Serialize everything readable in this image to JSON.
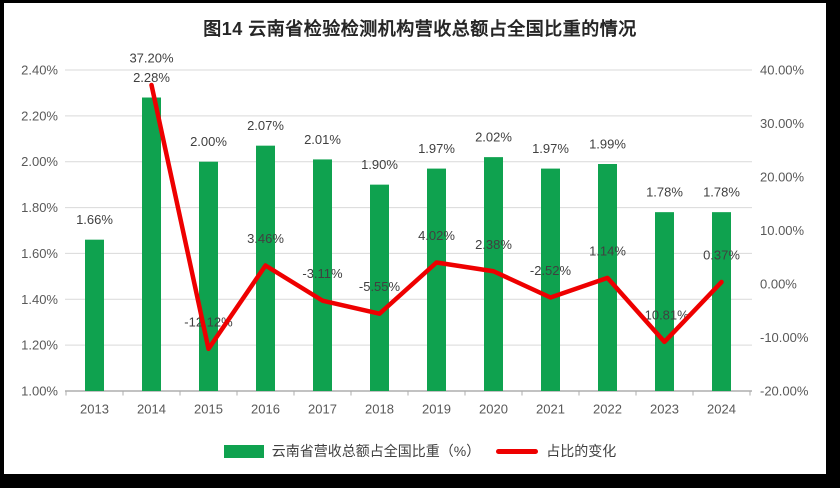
{
  "frame": {
    "border_color": "#000000",
    "background": "#ffffff"
  },
  "chart_data": {
    "type": "combo-bar-line",
    "title": "图14 云南省检验检测机构营收总额占全国比重的情况",
    "categories": [
      "2013",
      "2014",
      "2015",
      "2016",
      "2017",
      "2018",
      "2019",
      "2020",
      "2021",
      "2022",
      "2023",
      "2024"
    ],
    "series": [
      {
        "name": "云南省营收总额占全国比重（%）",
        "type": "bar",
        "axis": "left",
        "color": "#0FA24F",
        "values": [
          1.66,
          2.28,
          2.0,
          2.07,
          2.01,
          1.9,
          1.97,
          2.02,
          1.97,
          1.99,
          1.78,
          1.78
        ],
        "labels": [
          "1.66%",
          "2.28%",
          "2.00%",
          "2.07%",
          "2.01%",
          "1.90%",
          "1.97%",
          "2.02%",
          "1.97%",
          "1.99%",
          "1.78%",
          "1.78%"
        ]
      },
      {
        "name": "占比的变化",
        "type": "line",
        "axis": "right",
        "color": "#EE0000",
        "values": [
          null,
          37.2,
          -12.12,
          3.46,
          -3.11,
          -5.55,
          4.02,
          2.38,
          -2.52,
          1.14,
          -10.81,
          0.37
        ],
        "labels": [
          null,
          "37.20%",
          "-12.12%",
          "3.46%",
          "-3.11%",
          "-5.55%",
          "4.02%",
          "2.38%",
          "-2.52%",
          "1.14%",
          "-10.81%",
          "0.37%"
        ]
      }
    ],
    "left_axis": {
      "min": 1.0,
      "max": 2.4,
      "tick_labels": [
        "2.40%",
        "2.20%",
        "2.00%",
        "1.80%",
        "1.60%",
        "1.40%",
        "1.20%",
        "1.00%"
      ]
    },
    "right_axis": {
      "min": -20,
      "max": 40,
      "tick_labels": [
        "40.00%",
        "30.00%",
        "20.00%",
        "10.00%",
        "0.00%",
        "-10.00%",
        "-20.00%"
      ]
    },
    "grid": true,
    "legend_position": "bottom",
    "colors": {
      "gridline": "#D9D9D9",
      "axis_line": "#ADADAD",
      "axis_text": "#595959",
      "data_label": "#404040"
    }
  }
}
